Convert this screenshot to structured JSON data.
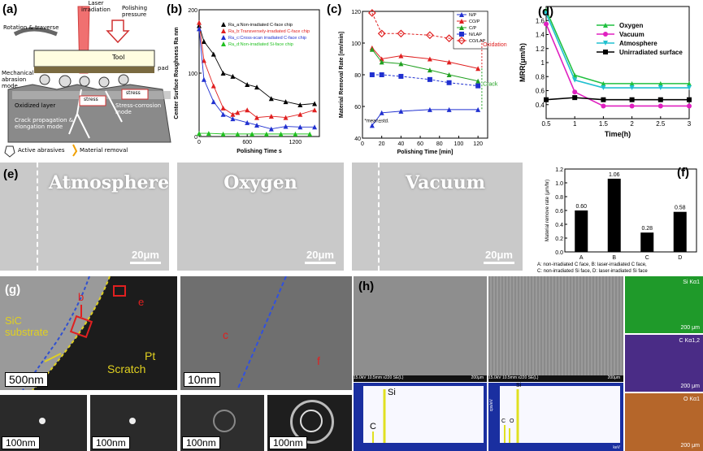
{
  "panel_labels": {
    "a": "(a)",
    "b": "(b)",
    "c": "(c)",
    "d": "(d)",
    "e": "(e)",
    "f": "(f)",
    "g": "(g)",
    "h": "(h)"
  },
  "panel_a": {
    "laser": "Laser irradiation",
    "polishing_pressure": "Polishing pressure",
    "rotation": "Rotation & traverse",
    "tool": "Tool",
    "pad": "pad",
    "mech_abrasion": "Mechanical abrasion mode",
    "oxidized_layer": "Oxidized layer",
    "stress": "stress",
    "stress_corrosion": "Stress-corrosion mode",
    "crack_mode": "Crack propagation & elongation mode",
    "legend_abrasives": "Active abrasives",
    "legend_removal": "Material removal"
  },
  "panel_e": {
    "titles": [
      "Atmosphere",
      "Oxygen",
      "Vacuum"
    ],
    "scale": "20μm"
  },
  "panel_g": {
    "sic": "SiC substrate",
    "pt": "Pt",
    "scratch": "Scratch",
    "b": "b",
    "e": "e",
    "c": "c",
    "f": "f",
    "scale1": "500nm",
    "scale2": "10nm",
    "scale_small": "100nm"
  },
  "panel_h": {
    "footer1": "15.0kV 10.5mm x220 SE(L)",
    "footer1_scale": "200μm",
    "footer2": "15.0kV 10.5mm x220 SE(L)",
    "footer2_scale": "200μm",
    "si": "Si",
    "c": "C",
    "o": "O",
    "c2": "C",
    "maps": [
      "Si Kα1",
      "C Kα1,2",
      "O Kα1"
    ],
    "map_scale": "200 μm",
    "kev": "keV",
    "ylabel": "cps/eV"
  },
  "chart_data": [
    {
      "id": "b",
      "type": "line",
      "xlabel": "Polishing Time s",
      "ylabel": "Center Surface Roughness Ra nm",
      "xlim": [
        0,
        1500
      ],
      "ylim": [
        0,
        200
      ],
      "xticks": [
        0,
        600,
        1200
      ],
      "yticks": [
        0,
        100,
        200
      ],
      "series": [
        {
          "name": "Ra_a:Non-irradiated C-face chip",
          "color": "#000000",
          "marker": "triangle",
          "x": [
            0,
            60,
            180,
            300,
            420,
            600,
            720,
            900,
            1080,
            1260,
            1440
          ],
          "y": [
            175,
            150,
            130,
            100,
            95,
            82,
            78,
            60,
            55,
            50,
            52
          ]
        },
        {
          "name": "Ra_b:Transversely-irradiated C-face chip",
          "color": "#e02020",
          "marker": "triangle",
          "x": [
            0,
            60,
            180,
            300,
            420,
            480,
            600,
            720,
            900,
            1080,
            1260,
            1440
          ],
          "y": [
            180,
            120,
            80,
            45,
            35,
            38,
            42,
            30,
            32,
            30,
            35,
            42
          ]
        },
        {
          "name": "Ra_c:Cross-scan irradiated C-face chip",
          "color": "#2030d0",
          "marker": "triangle",
          "x": [
            0,
            60,
            180,
            300,
            420,
            600,
            720,
            900,
            1080,
            1260,
            1440
          ],
          "y": [
            170,
            90,
            55,
            35,
            28,
            22,
            18,
            12,
            16,
            15,
            15
          ]
        },
        {
          "name": "Ra_d:Non-irradiated Si-face chip",
          "color": "#20c020",
          "marker": "triangle",
          "x": [
            0,
            120,
            300,
            480,
            660,
            840,
            1020,
            1200,
            1380
          ],
          "y": [
            5,
            5,
            4,
            4,
            4,
            4,
            4,
            4,
            4
          ]
        }
      ]
    },
    {
      "id": "c",
      "type": "line",
      "xlabel": "Polishing Time [min]",
      "ylabel": "Material Removal Rate [nm/min]",
      "xlim": [
        0,
        130
      ],
      "ylim": [
        40,
        120
      ],
      "xticks": [
        0,
        20,
        40,
        60,
        80,
        100,
        120
      ],
      "yticks": [
        40,
        60,
        80,
        100,
        120
      ],
      "note": "*mean±std.",
      "annotations": [
        "Oxidation",
        "Crack"
      ],
      "series": [
        {
          "name": "N/P",
          "color": "#2030d0",
          "marker": "triangle",
          "x": [
            10,
            20,
            40,
            70,
            90,
            120
          ],
          "y": [
            48,
            56,
            57,
            58,
            58,
            58
          ]
        },
        {
          "name": "CO/P",
          "color": "#e02020",
          "marker": "triangle",
          "x": [
            10,
            20,
            40,
            70,
            90,
            120
          ],
          "y": [
            97,
            90,
            92,
            90,
            88,
            84
          ]
        },
        {
          "name": "C/P",
          "color": "#20a020",
          "marker": "triangle",
          "x": [
            10,
            20,
            40,
            70,
            90,
            120
          ],
          "y": [
            96,
            88,
            87,
            83,
            80,
            76
          ]
        },
        {
          "name": "N/LAP",
          "color": "#2030d0",
          "marker": "square",
          "x": [
            10,
            20,
            40,
            70,
            90,
            120
          ],
          "y": [
            80,
            80,
            79,
            77,
            75,
            73
          ]
        },
        {
          "name": "CO/LAP",
          "color": "#e02020",
          "marker": "diamond",
          "x": [
            10,
            20,
            40,
            70,
            90,
            120
          ],
          "y": [
            119,
            106,
            106,
            105,
            103,
            102
          ]
        }
      ]
    },
    {
      "id": "d",
      "type": "line",
      "xlabel": "Time(h)",
      "ylabel": "MRR(μm/h)",
      "xlim": [
        0.5,
        3.0
      ],
      "ylim": [
        0.2,
        1.8
      ],
      "xticks": [
        0.5,
        1.0,
        1.5,
        2.0,
        2.5,
        3.0
      ],
      "yticks": [
        0.4,
        0.6,
        0.8,
        1.0,
        1.2,
        1.4,
        1.6
      ],
      "series": [
        {
          "name": "Oxygen",
          "color": "#20c040",
          "marker": "triangle",
          "x": [
            0.5,
            1.0,
            1.5,
            2.0,
            2.5,
            3.0
          ],
          "y": [
            1.75,
            0.82,
            0.7,
            0.7,
            0.7,
            0.7
          ]
        },
        {
          "name": "Vacuum",
          "color": "#e020c0",
          "marker": "circle",
          "x": [
            0.5,
            1.0,
            1.5,
            2.0,
            2.5,
            3.0
          ],
          "y": [
            1.55,
            0.58,
            0.38,
            0.38,
            0.38,
            0.38
          ]
        },
        {
          "name": "Atmosphere",
          "color": "#20c0d0",
          "marker": "triangle-down",
          "x": [
            0.5,
            1.0,
            1.5,
            2.0,
            2.5,
            3.0
          ],
          "y": [
            1.7,
            0.75,
            0.64,
            0.64,
            0.64,
            0.64
          ]
        },
        {
          "name": "Unirradiated surface",
          "color": "#000000",
          "marker": "square",
          "x": [
            0.5,
            1.0,
            1.5,
            2.0,
            2.5,
            3.0
          ],
          "y": [
            0.47,
            0.5,
            0.47,
            0.47,
            0.47,
            0.47
          ]
        }
      ]
    },
    {
      "id": "f",
      "type": "bar",
      "ylabel": "Material remove rate (μm/hr)",
      "categories": [
        "A",
        "B",
        "C",
        "D"
      ],
      "values": [
        0.6,
        1.06,
        0.28,
        0.58
      ],
      "value_labels": [
        "0.60",
        "1.06",
        "0.28",
        "0.58"
      ],
      "ylim": [
        0,
        1.2
      ],
      "yticks": [
        0,
        0.2,
        0.4,
        0.6,
        0.8,
        1.0,
        1.2
      ],
      "ytick_labels": [
        "0.0",
        "0.2",
        "0.4",
        "0.6",
        "0.8",
        "1.0",
        "1.2"
      ],
      "caption": [
        "A: non-irradiated C face,",
        "B: laser-irradiated C face,",
        "C: non-irradiated Si face,",
        "D: laser-irradiated Si face"
      ]
    }
  ]
}
